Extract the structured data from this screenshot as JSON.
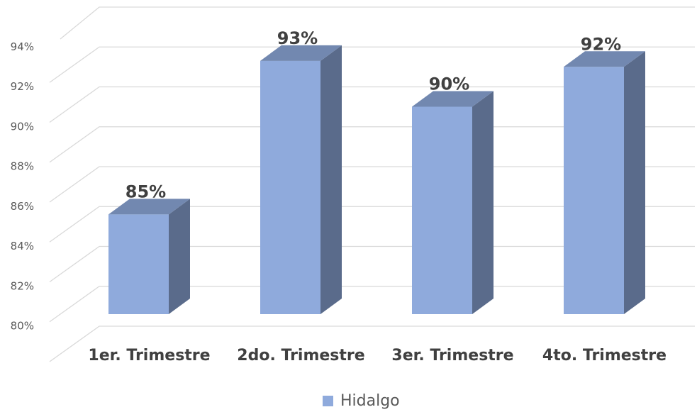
{
  "chart_data": {
    "type": "bar3d",
    "categories": [
      "1er. Trimestre",
      "2do. Trimestre",
      "3er. Trimestre",
      "4to. Trimestre"
    ],
    "series": [
      {
        "name": "Hidalgo",
        "color": "#8faadc",
        "values": [
          85,
          92.7,
          90.4,
          92.4
        ],
        "value_labels": [
          "85%",
          "93%",
          "90%",
          "92%"
        ]
      }
    ],
    "ylim": [
      80,
      96
    ],
    "yticks": [
      {
        "value": 80,
        "label": "80%"
      },
      {
        "value": 82,
        "label": "82%"
      },
      {
        "value": 84,
        "label": "84%"
      },
      {
        "value": 86,
        "label": "86%"
      },
      {
        "value": 88,
        "label": "88%"
      },
      {
        "value": 90,
        "label": "90%"
      },
      {
        "value": 92,
        "label": "92%"
      },
      {
        "value": 94,
        "label": "94%"
      }
    ],
    "grid": true,
    "legend": "bottom"
  }
}
